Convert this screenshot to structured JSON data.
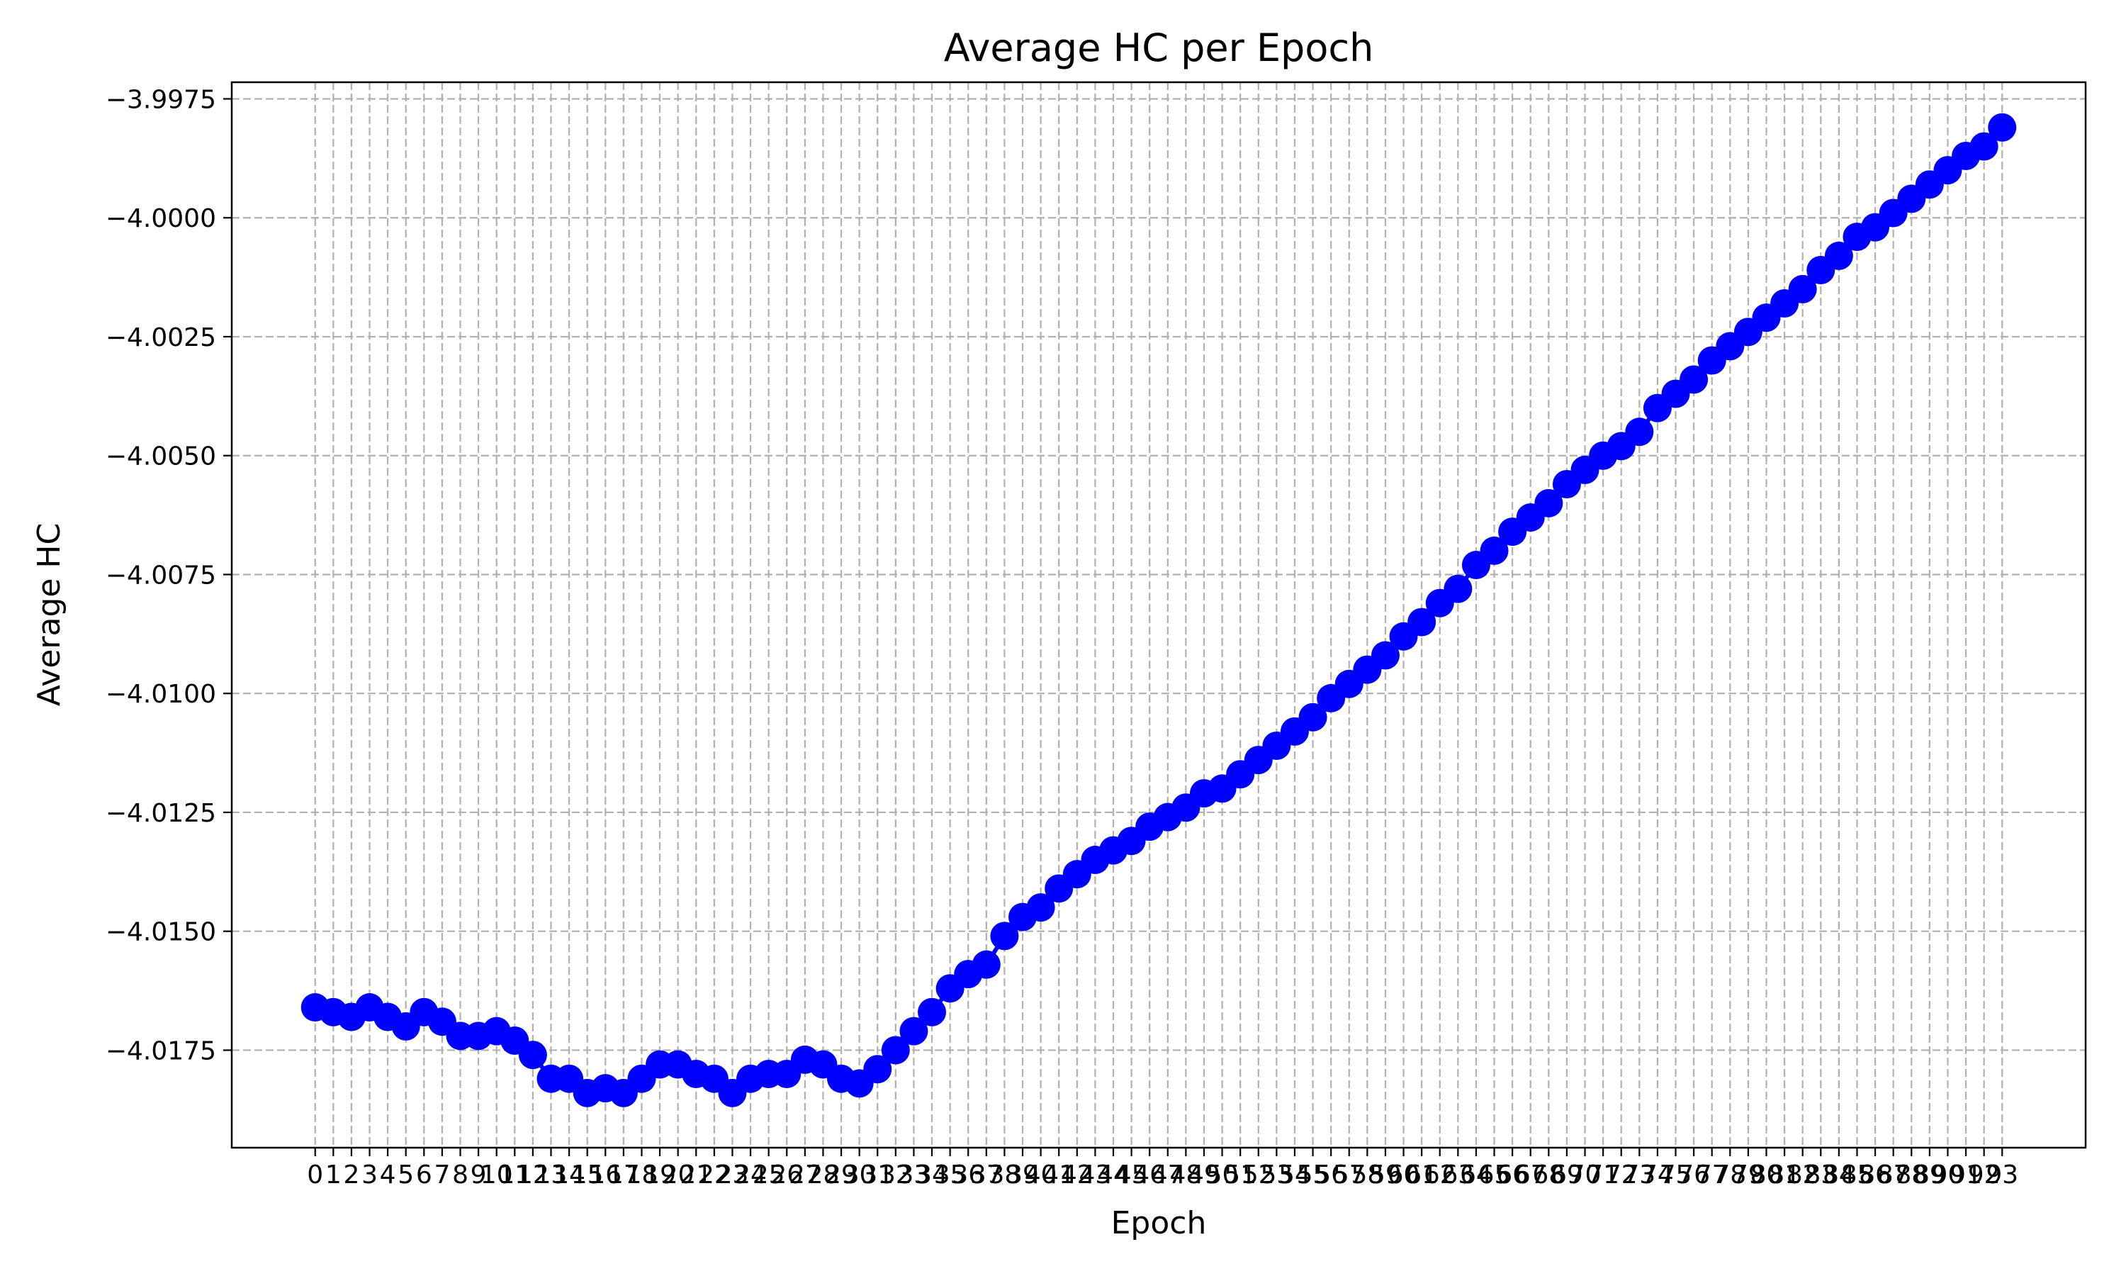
{
  "chart_data": {
    "type": "line",
    "title": "Average HC per Epoch",
    "xlabel": "Epoch",
    "ylabel": "Average HC",
    "grid": true,
    "marker": "circle",
    "colors": {
      "series": "#0000ff",
      "grid": "#b0b0b0"
    },
    "xlim": [
      -4.6,
      97.6
    ],
    "ylim": [
      -4.01955,
      -3.99715
    ],
    "y_ticks": [
      -4.0175,
      -4.015,
      -4.0125,
      -4.01,
      -4.0075,
      -4.005,
      -4.0025,
      -4.0,
      -3.9975
    ],
    "y_tick_labels": [
      "−4.0175",
      "−4.0150",
      "−4.0125",
      "−4.0100",
      "−4.0075",
      "−4.0050",
      "−4.0025",
      "−4.0000",
      "−3.9975"
    ],
    "series": [
      {
        "x": [
          0,
          1,
          2,
          3,
          4,
          5,
          6,
          7,
          8,
          9,
          10,
          11,
          12,
          13,
          14,
          15,
          16,
          17,
          18,
          19,
          20,
          21,
          22,
          23,
          24,
          25,
          26,
          27,
          28,
          29,
          30,
          31,
          32,
          33,
          34,
          35,
          36,
          37,
          38,
          39,
          40,
          41,
          42,
          43,
          44,
          45,
          46,
          47,
          48,
          49,
          50,
          51,
          52,
          53,
          54,
          55,
          56,
          57,
          58,
          59,
          60,
          61,
          62,
          63,
          64,
          65,
          66,
          67,
          68,
          69,
          70,
          71,
          72,
          73,
          74,
          75,
          76,
          77,
          78,
          79,
          80,
          81,
          82,
          83,
          84,
          85,
          86,
          87,
          88,
          89,
          90,
          91,
          92,
          93
        ],
        "values": [
          -4.0166,
          -4.0167,
          -4.0168,
          -4.0166,
          -4.0168,
          -4.017,
          -4.0167,
          -4.0169,
          -4.0172,
          -4.0172,
          -4.0171,
          -4.0173,
          -4.0176,
          -4.0181,
          -4.0181,
          -4.0184,
          -4.0183,
          -4.0184,
          -4.0181,
          -4.0178,
          -4.0178,
          -4.018,
          -4.0181,
          -4.0184,
          -4.0181,
          -4.018,
          -4.018,
          -4.0177,
          -4.0178,
          -4.0181,
          -4.0182,
          -4.0179,
          -4.0175,
          -4.0171,
          -4.0167,
          -4.0162,
          -4.0159,
          -4.0157,
          -4.0151,
          -4.0147,
          -4.0145,
          -4.0141,
          -4.0138,
          -4.0135,
          -4.0133,
          -4.0131,
          -4.0128,
          -4.0126,
          -4.0124,
          -4.0121,
          -4.012,
          -4.0117,
          -4.0114,
          -4.0111,
          -4.0108,
          -4.0105,
          -4.0101,
          -4.0098,
          -4.0095,
          -4.0092,
          -4.0088,
          -4.0085,
          -4.0081,
          -4.0078,
          -4.0073,
          -4.007,
          -4.0066,
          -4.0063,
          -4.006,
          -4.0056,
          -4.0053,
          -4.005,
          -4.0048,
          -4.0045,
          -4.004,
          -4.0037,
          -4.0034,
          -4.003,
          -4.0027,
          -4.0024,
          -4.0021,
          -4.0018,
          -4.0015,
          -4.0011,
          -4.0008,
          -4.0004,
          -4.0002,
          -3.9999,
          -3.9996,
          -3.9993,
          -3.999,
          -3.9987,
          -3.9985,
          -3.9981
        ]
      }
    ]
  }
}
